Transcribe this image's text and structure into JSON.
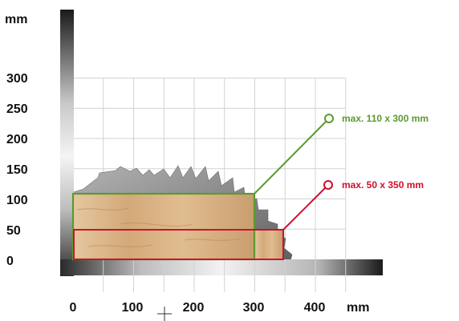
{
  "units": {
    "y": "mm",
    "x": "mm"
  },
  "y_ticks": [
    "300",
    "250",
    "200",
    "150",
    "100",
    "50",
    "0"
  ],
  "x_ticks": [
    "0",
    "100",
    "200",
    "300",
    "400"
  ],
  "grid": true,
  "blade": {
    "diameter_mm": 400,
    "cut_depth_mm": 110
  },
  "cuts": [
    {
      "label": "max. 110 x 300 mm",
      "height_mm": 110,
      "width_mm": 300,
      "color": "#5a9a2f"
    },
    {
      "label": "max. 50 x 350 mm",
      "height_mm": 50,
      "width_mm": 350,
      "color": "#d0112b"
    }
  ],
  "colors": {
    "axis_dark": "#111111",
    "wood": "#d8b183",
    "blade": "#8f8f8f",
    "grid": "#d2d2d2"
  },
  "icons": [
    "crosshair-icon"
  ]
}
